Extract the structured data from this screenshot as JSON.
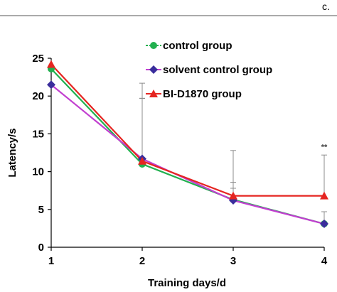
{
  "panel_label": "c.",
  "chart_data": {
    "type": "line",
    "title": "",
    "xlabel": "Training days/d",
    "ylabel": "Latency/s",
    "x": [
      1,
      2,
      3,
      4
    ],
    "x_tick_labels": [
      "1",
      "2",
      "3",
      "4"
    ],
    "ylim": [
      0,
      25
    ],
    "y_ticks": [
      0,
      5,
      10,
      15,
      20,
      25
    ],
    "y_tick_labels": [
      "0",
      "5",
      "10",
      "15",
      "20",
      "25"
    ],
    "grid": false,
    "legend_position": "top-center",
    "series": [
      {
        "name": "control group",
        "color": "#22b04f",
        "marker": "circle",
        "values": [
          23.6,
          11.0,
          6.3,
          3.1
        ],
        "error_upper": [
          null,
          8.7,
          2.3,
          1.6
        ]
      },
      {
        "name": "solvent control group",
        "color": "#3a2d9c",
        "marker": "diamond",
        "values": [
          21.5,
          11.7,
          6.2,
          3.1
        ],
        "error_upper": [
          null,
          8.0,
          1.6,
          1.6
        ]
      },
      {
        "name": "BI-D1870 group",
        "color": "#e52521",
        "marker": "triangle",
        "values": [
          24.2,
          11.4,
          6.8,
          6.8
        ],
        "error_upper": [
          null,
          10.3,
          6.0,
          5.4
        ]
      }
    ],
    "annotations": [
      {
        "x": 4,
        "y": 13.3,
        "text": "**"
      }
    ]
  }
}
